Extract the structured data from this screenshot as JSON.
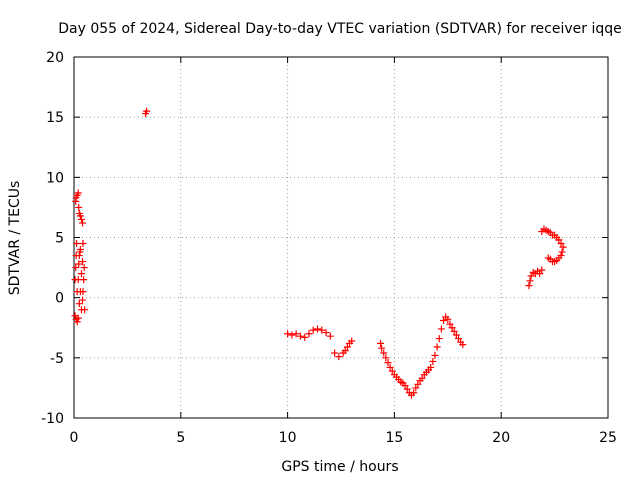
{
  "chart_data": {
    "type": "scatter",
    "title": "Day 055 of 2024, Sidereal Day-to-day VTEC variation (SDTVAR) for receiver iqqe",
    "xlabel": "GPS time / hours",
    "ylabel": "SDTVAR / TECUs",
    "xlim": [
      0,
      25
    ],
    "ylim": [
      -10,
      20
    ],
    "xticks": [
      0,
      5,
      10,
      15,
      20,
      25
    ],
    "yticks": [
      -10,
      -5,
      0,
      5,
      10,
      15,
      20
    ],
    "grid": true,
    "marker": "+",
    "color": "#ff0000",
    "series": [
      {
        "name": "SDTVAR",
        "points": [
          [
            0.05,
            -1.5
          ],
          [
            0.1,
            -1.8
          ],
          [
            0.15,
            -2.0
          ],
          [
            0.2,
            -1.7
          ],
          [
            0.05,
            1.5
          ],
          [
            0.08,
            2.5
          ],
          [
            0.1,
            3.5
          ],
          [
            0.12,
            4.5
          ],
          [
            0.08,
            8.0
          ],
          [
            0.1,
            8.3
          ],
          [
            0.15,
            8.5
          ],
          [
            0.2,
            8.7
          ],
          [
            0.22,
            7.5
          ],
          [
            0.25,
            7.0
          ],
          [
            0.3,
            6.8
          ],
          [
            0.35,
            6.5
          ],
          [
            0.4,
            6.2
          ],
          [
            0.15,
            0.5
          ],
          [
            0.2,
            1.5
          ],
          [
            0.22,
            2.8
          ],
          [
            0.25,
            3.5
          ],
          [
            0.28,
            3.8
          ],
          [
            0.3,
            4.0
          ],
          [
            0.25,
            -0.5
          ],
          [
            0.3,
            0.5
          ],
          [
            0.35,
            2.0
          ],
          [
            0.4,
            3.0
          ],
          [
            0.42,
            4.5
          ],
          [
            0.35,
            -1.0
          ],
          [
            0.4,
            -0.2
          ],
          [
            0.42,
            0.5
          ],
          [
            0.45,
            1.5
          ],
          [
            0.48,
            2.5
          ],
          [
            0.5,
            -1.0
          ],
          [
            3.35,
            15.3
          ],
          [
            3.4,
            15.5
          ],
          [
            10.0,
            -3.0
          ],
          [
            10.2,
            -3.1
          ],
          [
            10.4,
            -3.0
          ],
          [
            10.6,
            -3.2
          ],
          [
            10.8,
            -3.3
          ],
          [
            11.0,
            -3.0
          ],
          [
            11.2,
            -2.7
          ],
          [
            11.4,
            -2.6
          ],
          [
            11.6,
            -2.7
          ],
          [
            11.8,
            -2.9
          ],
          [
            12.0,
            -3.2
          ],
          [
            12.2,
            -4.6
          ],
          [
            12.4,
            -4.9
          ],
          [
            12.6,
            -4.6
          ],
          [
            12.7,
            -4.4
          ],
          [
            12.8,
            -4.1
          ],
          [
            12.9,
            -3.8
          ],
          [
            13.0,
            -3.6
          ],
          [
            14.35,
            -3.8
          ],
          [
            14.4,
            -4.2
          ],
          [
            14.5,
            -4.6
          ],
          [
            14.6,
            -5.0
          ],
          [
            14.7,
            -5.4
          ],
          [
            14.8,
            -5.8
          ],
          [
            14.9,
            -6.1
          ],
          [
            15.0,
            -6.4
          ],
          [
            15.1,
            -6.6
          ],
          [
            15.2,
            -6.8
          ],
          [
            15.3,
            -7.0
          ],
          [
            15.4,
            -7.1
          ],
          [
            15.5,
            -7.3
          ],
          [
            15.6,
            -7.6
          ],
          [
            15.7,
            -7.9
          ],
          [
            15.8,
            -8.1
          ],
          [
            15.9,
            -7.9
          ],
          [
            16.0,
            -7.5
          ],
          [
            16.1,
            -7.2
          ],
          [
            16.2,
            -6.9
          ],
          [
            16.3,
            -6.7
          ],
          [
            16.4,
            -6.4
          ],
          [
            16.5,
            -6.2
          ],
          [
            16.6,
            -6.0
          ],
          [
            16.7,
            -5.8
          ],
          [
            16.8,
            -5.3
          ],
          [
            16.9,
            -4.8
          ],
          [
            17.0,
            -4.1
          ],
          [
            17.1,
            -3.4
          ],
          [
            17.2,
            -2.6
          ],
          [
            17.3,
            -1.9
          ],
          [
            17.4,
            -1.6
          ],
          [
            17.5,
            -1.8
          ],
          [
            17.6,
            -2.2
          ],
          [
            17.7,
            -2.5
          ],
          [
            17.8,
            -2.8
          ],
          [
            17.9,
            -3.1
          ],
          [
            18.0,
            -3.4
          ],
          [
            18.1,
            -3.7
          ],
          [
            18.2,
            -3.9
          ],
          [
            21.3,
            1.0
          ],
          [
            21.35,
            1.4
          ],
          [
            21.4,
            1.8
          ],
          [
            21.5,
            2.1
          ],
          [
            21.6,
            2.0
          ],
          [
            21.7,
            2.2
          ],
          [
            21.8,
            2.0
          ],
          [
            21.9,
            2.3
          ],
          [
            21.9,
            5.5
          ],
          [
            22.0,
            5.7
          ],
          [
            22.1,
            5.6
          ],
          [
            22.2,
            5.5
          ],
          [
            22.3,
            5.4
          ],
          [
            22.4,
            5.2
          ],
          [
            22.5,
            5.2
          ],
          [
            22.6,
            5.0
          ],
          [
            22.7,
            4.8
          ],
          [
            22.8,
            4.5
          ],
          [
            22.9,
            4.2
          ],
          [
            22.85,
            3.8
          ],
          [
            22.8,
            3.5
          ],
          [
            22.7,
            3.3
          ],
          [
            22.6,
            3.1
          ],
          [
            22.5,
            3.0
          ],
          [
            22.4,
            3.0
          ],
          [
            22.3,
            3.2
          ],
          [
            22.2,
            3.3
          ]
        ]
      }
    ]
  }
}
